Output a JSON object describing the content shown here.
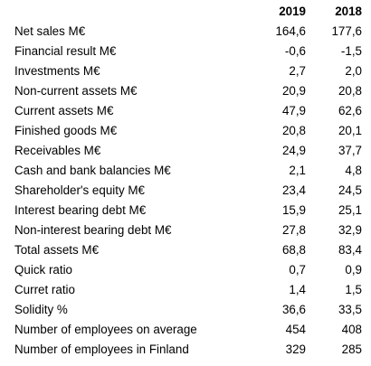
{
  "table": {
    "headers": [
      "",
      "2019",
      "2018"
    ],
    "rows": [
      {
        "label": "Net sales M€",
        "y2019": "164,6",
        "y2018": "177,6"
      },
      {
        "label": "Financial result M€",
        "y2019": "-0,6",
        "y2018": "-1,5"
      },
      {
        "label": "Investments M€",
        "y2019": "2,7",
        "y2018": "2,0"
      },
      {
        "label": "Non-current assets M€",
        "y2019": "20,9",
        "y2018": "20,8"
      },
      {
        "label": "Current assets M€",
        "y2019": "47,9",
        "y2018": "62,6"
      },
      {
        "label": "Finished goods M€",
        "y2019": "20,8",
        "y2018": "20,1"
      },
      {
        "label": "Receivables M€",
        "y2019": "24,9",
        "y2018": "37,7"
      },
      {
        "label": "Cash and bank balancies M€",
        "y2019": "2,1",
        "y2018": "4,8"
      },
      {
        "label": "Shareholder's equity M€",
        "y2019": "23,4",
        "y2018": "24,5"
      },
      {
        "label": "Interest bearing debt M€",
        "y2019": "15,9",
        "y2018": "25,1"
      },
      {
        "label": "Non-interest bearing debt M€",
        "y2019": "27,8",
        "y2018": "32,9"
      },
      {
        "label": "Total assets M€",
        "y2019": "68,8",
        "y2018": "83,4"
      },
      {
        "label": "Quick ratio",
        "y2019": "0,7",
        "y2018": "0,9"
      },
      {
        "label": "Curret ratio",
        "y2019": "1,4",
        "y2018": "1,5"
      },
      {
        "label": "Solidity %",
        "y2019": "36,6",
        "y2018": "33,5"
      },
      {
        "label": "Number of employees on average",
        "y2019": "454",
        "y2018": "408"
      },
      {
        "label": "Number of employees in Finland",
        "y2019": "329",
        "y2018": "285"
      }
    ]
  }
}
